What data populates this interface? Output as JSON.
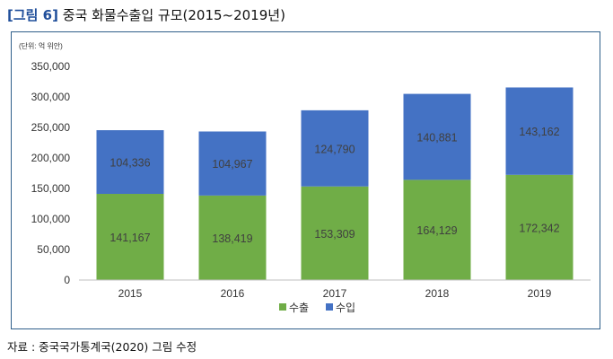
{
  "header": {
    "figure_label": "[그림 6]",
    "title": "중국 화물수출입 규모(2015~2019년)"
  },
  "chart_data": {
    "type": "bar",
    "stacked": true,
    "unit_label": "(단위: 억 위안)",
    "categories": [
      "2015",
      "2016",
      "2017",
      "2018",
      "2019"
    ],
    "series": [
      {
        "name": "수출",
        "color": "#70ad47",
        "values": [
          141167,
          138419,
          153309,
          164129,
          172342
        ],
        "labels": [
          "141,167",
          "138,419",
          "153,309",
          "164,129",
          "172,342"
        ]
      },
      {
        "name": "수입",
        "color": "#4472c4",
        "values": [
          104336,
          104967,
          124790,
          140881,
          143162
        ],
        "labels": [
          "104,336",
          "104,967",
          "124,790",
          "140,881",
          "143,162"
        ]
      }
    ],
    "ylim": [
      0,
      350000
    ],
    "yticks": [
      0,
      50000,
      100000,
      150000,
      200000,
      250000,
      300000,
      350000
    ],
    "ytick_labels": [
      "0",
      "50,000",
      "100,000",
      "150,000",
      "200,000",
      "250,000",
      "300,000",
      "350,000"
    ],
    "legend_position": "bottom",
    "grid": false
  },
  "source": "자료 : 중국국가통계국(2020) 그림 수정"
}
